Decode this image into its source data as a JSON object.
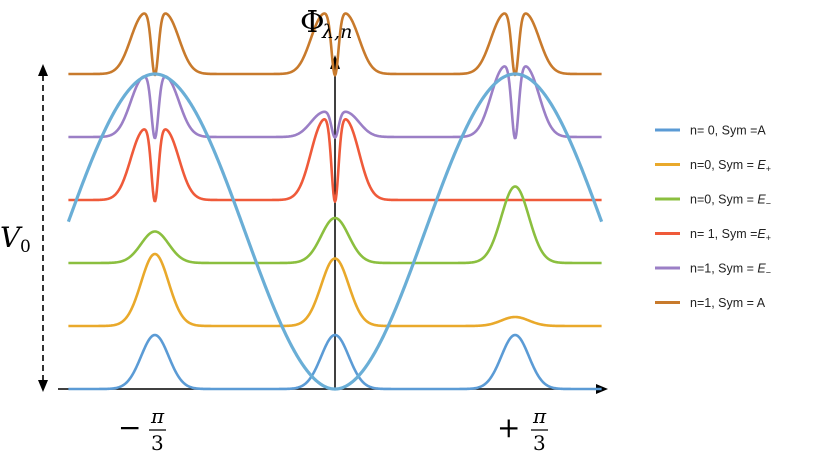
{
  "chart_data": {
    "type": "line",
    "title": "",
    "ylabel": "Φ_{λ,n}",
    "y_annotation": "V_0",
    "x_ticks": [
      {
        "value": -1.0472,
        "label_sign": "−",
        "label_num": "π",
        "label_den": "3"
      },
      {
        "value": 1.0472,
        "label_sign": "+",
        "label_num": "π",
        "label_den": "3"
      }
    ],
    "xlim": [
      -2.09,
      2.09
    ],
    "potential": {
      "name": "n= 0, Sym =A",
      "color": "#6aaed6",
      "formula": "cos(3x) well, minima at x = 0, ±π/3 (lowest at 0 and ±π/3 every third well shown)"
    },
    "series": [
      {
        "name": "n= 0, Sym =A",
        "color": "#5b9bd5",
        "offset": 0.0,
        "shape": "gaussian",
        "amp": 0.12,
        "centers": [
          -1.0472,
          0,
          1.0472
        ]
      },
      {
        "name": "n=0, Sym = E+",
        "color": "#e9a92b",
        "offset": 0.14,
        "shape": "gaussian",
        "amp": [
          0.16,
          0.15,
          0.02
        ],
        "centers": [
          -1.0472,
          0,
          1.0472
        ]
      },
      {
        "name": "n=0, Sym = E−",
        "color": "#8bbf3f",
        "offset": 0.28,
        "shape": "gaussian",
        "amp": [
          0.07,
          0.1,
          0.17
        ],
        "centers": [
          -1.0472,
          0,
          1.0472
        ]
      },
      {
        "name": "n= 1, Sym =E+",
        "color": "#ef5a3a",
        "offset": 0.42,
        "shape": "double",
        "amp": [
          0.14,
          0.16,
          0.0
        ],
        "centers": [
          -1.0472,
          0,
          1.0472
        ]
      },
      {
        "name": "n=1, Sym = E−",
        "color": "#9b7fc6",
        "offset": 0.56,
        "shape": "double",
        "amp": [
          0.12,
          0.05,
          0.14
        ],
        "centers": [
          -1.0472,
          0,
          1.0472
        ]
      },
      {
        "name": "n=1, Sym = A",
        "color": "#c87a2c",
        "offset": 0.7,
        "shape": "double",
        "amp": [
          0.12,
          0.12,
          0.12
        ],
        "centers": [
          -1.0472,
          0,
          1.0472
        ]
      }
    ],
    "legend": {
      "placement": "right",
      "entries": [
        {
          "pre": "n= 0, Sym =A",
          "sub": ""
        },
        {
          "pre": "n=0, Sym = ",
          "math": "E",
          "sub": "+"
        },
        {
          "pre": "n=0, Sym = ",
          "math": "E",
          "sub": "−"
        },
        {
          "pre": "n= 1, Sym =",
          "math": "E",
          "sub": "+"
        },
        {
          "pre": "n=1, Sym = ",
          "math": "E",
          "sub": "−"
        },
        {
          "pre": "n=1, Sym = A",
          "sub": ""
        }
      ]
    }
  }
}
